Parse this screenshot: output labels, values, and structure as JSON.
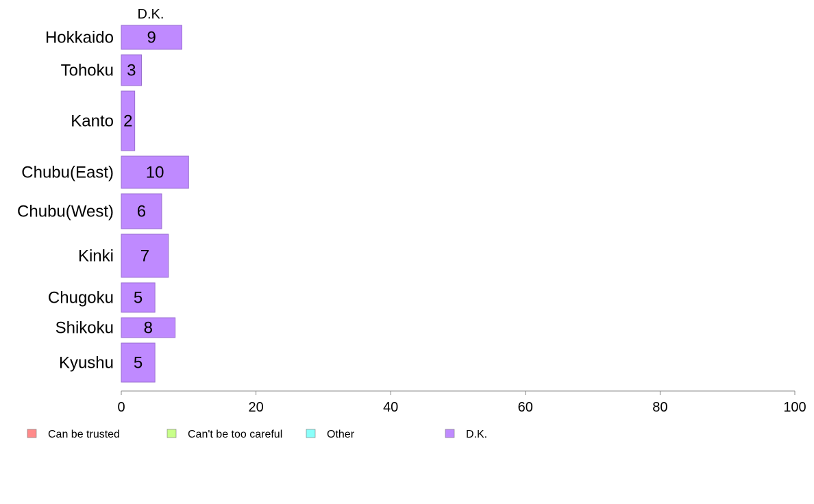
{
  "chart_data": {
    "type": "bar",
    "orientation": "horizontal",
    "stacked": true,
    "categories": [
      "Hokkaido",
      "Tohoku",
      "Kanto",
      "Chubu(East)",
      "Chubu(West)",
      "Kinki",
      "Chugoku",
      "Shikoku",
      "Kyushu"
    ],
    "series": [
      {
        "name": "Can be trusted",
        "color": "#ff8a8a",
        "values": [
          0,
          0,
          0,
          0,
          0,
          0,
          0,
          0,
          0
        ]
      },
      {
        "name": "Can't be too careful",
        "color": "#c8ff8a",
        "values": [
          0,
          0,
          0,
          0,
          0,
          0,
          0,
          0,
          0
        ]
      },
      {
        "name": "Other",
        "color": "#8afffa",
        "values": [
          0,
          0,
          0,
          0,
          0,
          0,
          0,
          0,
          0
        ]
      },
      {
        "name": "D.K.",
        "color": "#bf8aff",
        "values": [
          9,
          3,
          2,
          10,
          6,
          7,
          5,
          8,
          5
        ]
      }
    ],
    "series_header": "D.K.",
    "xlim": [
      0,
      100
    ],
    "x_ticks": [
      0,
      20,
      40,
      60,
      80,
      100
    ],
    "grid": false,
    "legend_position": "bottom"
  }
}
